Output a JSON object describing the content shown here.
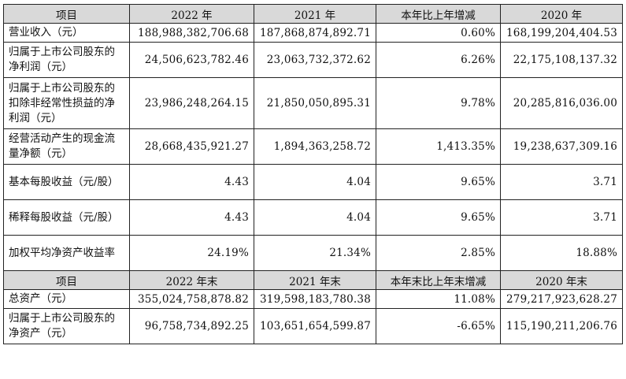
{
  "header1": [
    "项目",
    "2022 年",
    "2021 年",
    "本年比上年增减",
    "2020 年"
  ],
  "rows1": [
    {
      "label": "营业收入（元）",
      "v2022": "188,988,382,706.68",
      "v2021": "187,868,874,892.71",
      "change": "0.60%",
      "v2020": "168,199,204,404.53"
    },
    {
      "label": "归属于上市公司股东的净利润（元）",
      "v2022": "24,506,623,782.46",
      "v2021": "23,063,732,372.62",
      "change": "6.26%",
      "v2020": "22,175,108,137.32"
    },
    {
      "label": "归属于上市公司股东的扣除非经常性损益的净利润（元）",
      "v2022": "23,986,248,264.15",
      "v2021": "21,850,050,895.31",
      "change": "9.78%",
      "v2020": "20,285,816,036.00"
    },
    {
      "label": "经营活动产生的现金流量净额（元）",
      "v2022": "28,668,435,921.27",
      "v2021": "1,894,363,258.72",
      "change": "1,413.35%",
      "v2020": "19,238,637,309.16"
    },
    {
      "label": "基本每股收益（元/股）",
      "v2022": "4.43",
      "v2021": "4.04",
      "change": "9.65%",
      "v2020": "3.71"
    },
    {
      "label": "稀释每股收益（元/股）",
      "v2022": "4.43",
      "v2021": "4.04",
      "change": "9.65%",
      "v2020": "3.71"
    },
    {
      "label": "加权平均净资产收益率",
      "v2022": "24.19%",
      "v2021": "21.34%",
      "change": "2.85%",
      "v2020": "18.88%"
    }
  ],
  "header2": [
    "项目",
    "2022 年末",
    "2021 年末",
    "本年末比上年末增减",
    "2020 年末"
  ],
  "rows2": [
    {
      "label": "总资产（元）",
      "v2022": "355,024,758,878.82",
      "v2021": "319,598,183,780.38",
      "change": "11.08%",
      "v2020": "279,217,923,628.27"
    },
    {
      "label": "归属于上市公司股东的净资产（元）",
      "v2022": "96,758,734,892.25",
      "v2021": "103,651,654,599.87",
      "change": "-6.65%",
      "v2020": "115,190,211,206.76"
    }
  ]
}
